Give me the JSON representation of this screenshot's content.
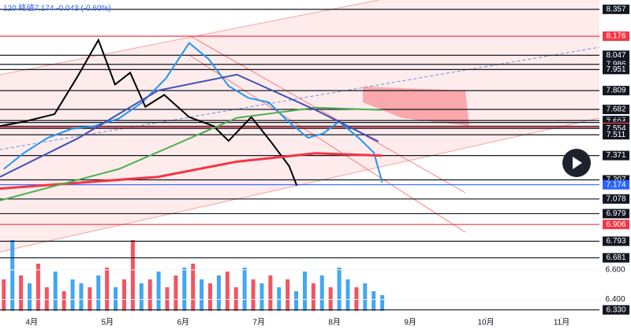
{
  "chart_data": {
    "type": "line",
    "header": "120 終値7.174 -0.043 (-0.60%)",
    "xlim": [
      3.58,
      11.5
    ],
    "xticks": [
      {
        "value": 4,
        "label": "4月"
      },
      {
        "value": 5,
        "label": "5月"
      },
      {
        "value": 6,
        "label": "6月"
      },
      {
        "value": 7,
        "label": "7月"
      },
      {
        "value": 8,
        "label": "8月"
      },
      {
        "value": 9,
        "label": "9月"
      },
      {
        "value": 10,
        "label": "10月"
      },
      {
        "value": 11,
        "label": "11月"
      }
    ],
    "ylim": [
      6.27,
      8.42
    ],
    "yticks": [
      {
        "value": 6.6,
        "label": "6.600"
      },
      {
        "value": 6.4,
        "label": "6.400"
      }
    ],
    "levels": [
      {
        "value": 8.357,
        "color": "#131722"
      },
      {
        "value": 8.176,
        "color": "#f23645"
      },
      {
        "value": 8.047,
        "color": "#131722"
      },
      {
        "value": 7.986,
        "color": "#131722"
      },
      {
        "value": 7.951,
        "color": "#131722"
      },
      {
        "value": 7.809,
        "color": "#131722"
      },
      {
        "value": 7.682,
        "color": "#131722"
      },
      {
        "value": 7.607,
        "color": "#131722"
      },
      {
        "value": 7.594,
        "color": "#131722"
      },
      {
        "value": 7.569,
        "color": "#131722"
      },
      {
        "value": 7.561,
        "color": "#f23645"
      },
      {
        "value": 7.554,
        "color": "#131722"
      },
      {
        "value": 7.511,
        "color": "#131722"
      },
      {
        "value": 7.371,
        "color": "#131722"
      },
      {
        "value": 7.207,
        "color": "#131722"
      },
      {
        "value": 7.174,
        "color": "#2962ff"
      },
      {
        "value": 7.078,
        "color": "#131722"
      },
      {
        "value": 6.979,
        "color": "#131722"
      },
      {
        "value": 6.906,
        "color": "#f23645"
      },
      {
        "value": 6.793,
        "color": "#131722"
      },
      {
        "value": 6.681,
        "color": "#131722"
      },
      {
        "value": 6.33,
        "label": "6.330",
        "color": "#131722"
      }
    ],
    "series": [
      {
        "color": "#2196f3",
        "x": [
          3.63,
          3.9,
          4.21,
          4.52,
          4.83,
          5.15,
          5.46,
          5.77,
          6.08,
          6.34,
          6.6,
          6.86,
          7.13,
          7.39,
          7.65,
          7.85,
          8.06,
          8.32,
          8.52,
          8.63
        ],
        "values": [
          7.28,
          7.39,
          7.49,
          7.55,
          7.57,
          7.62,
          7.73,
          7.89,
          8.13,
          8.02,
          7.84,
          7.76,
          7.73,
          7.6,
          7.49,
          7.52,
          7.6,
          7.49,
          7.39,
          7.19
        ]
      },
      {
        "color": "#000000",
        "x": [
          3.58,
          3.9,
          4.3,
          4.6,
          4.88,
          5.1,
          5.3,
          5.5,
          5.75,
          6.08,
          6.4,
          6.6,
          6.9,
          7.15,
          7.4,
          7.5
        ],
        "values": [
          7.57,
          7.6,
          7.65,
          7.9,
          8.15,
          7.85,
          7.93,
          7.7,
          7.78,
          7.63,
          7.57,
          7.47,
          7.63,
          7.47,
          7.3,
          7.17
        ]
      },
      {
        "color": "#f23645",
        "x": [
          3.58,
          5.67,
          6.71,
          7.75,
          8.63
        ],
        "values": [
          7.148,
          7.227,
          7.33,
          7.386,
          7.37
        ]
      },
      {
        "color": "#4caf50",
        "x": [
          3.58,
          5.15,
          6.71,
          7.75,
          8.63
        ],
        "values": [
          7.068,
          7.28,
          7.625,
          7.694,
          7.678
        ]
      },
      {
        "color": "#3f51b5",
        "x": [
          3.58,
          4.62,
          5.67,
          6.71,
          7.75,
          8.58
        ],
        "values": [
          7.227,
          7.49,
          7.81,
          7.917,
          7.678,
          7.466
        ]
      }
    ],
    "volume": {
      "vlim": [
        0,
        100
      ],
      "values": [
        40,
        90,
        45,
        35,
        60,
        30,
        50,
        25,
        40,
        35,
        30,
        45,
        55,
        30,
        40,
        90,
        35,
        40,
        50,
        30,
        45,
        55,
        60,
        40,
        35,
        45,
        50,
        30,
        55,
        40,
        35,
        45,
        30,
        40,
        25,
        50,
        35,
        45,
        30,
        55,
        40,
        30,
        35,
        25,
        20
      ],
      "colors": [
        "#f23645",
        "#2196f3",
        "#f23645",
        "#2196f3",
        "#f23645",
        "#f23645",
        "#2196f3",
        "#f23645",
        "#2196f3",
        "#2196f3",
        "#f23645",
        "#2196f3",
        "#f23645",
        "#2196f3",
        "#f23645",
        "#f23645",
        "#2196f3",
        "#f23645",
        "#2196f3",
        "#f23645",
        "#f23645",
        "#2196f3",
        "#f23645",
        "#2196f3",
        "#f23645",
        "#2196f3",
        "#f23645",
        "#f23645",
        "#2196f3",
        "#f23645",
        "#2196f3",
        "#f23645",
        "#2196f3",
        "#f23645",
        "#2196f3",
        "#2196f3",
        "#f23645",
        "#2196f3",
        "#f23645",
        "#2196f3",
        "#2196f3",
        "#f23645",
        "#2196f3",
        "#2196f3",
        "#2196f3"
      ]
    }
  }
}
